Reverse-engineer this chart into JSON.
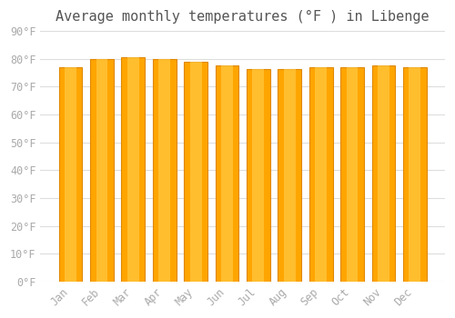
{
  "months": [
    "Jan",
    "Feb",
    "Mar",
    "Apr",
    "May",
    "Jun",
    "Jul",
    "Aug",
    "Sep",
    "Oct",
    "Nov",
    "Dec"
  ],
  "values": [
    77,
    80,
    80.5,
    80,
    79,
    77.5,
    76.5,
    76.5,
    77,
    77,
    77.5,
    77
  ],
  "bar_color_main": "#FFA500",
  "bar_color_light": "#FFD04D",
  "bar_color_edge": "#E08800",
  "title": "Average monthly temperatures (°F ) in Libenge",
  "ylim": [
    0,
    90
  ],
  "yticks": [
    0,
    10,
    20,
    30,
    40,
    50,
    60,
    70,
    80,
    90
  ],
  "ytick_labels": [
    "0°F",
    "10°F",
    "20°F",
    "30°F",
    "40°F",
    "50°F",
    "60°F",
    "70°F",
    "80°F",
    "90°F"
  ],
  "background_color": "#ffffff",
  "grid_color": "#dddddd",
  "title_fontsize": 11,
  "tick_fontsize": 8.5,
  "font_color": "#aaaaaa"
}
